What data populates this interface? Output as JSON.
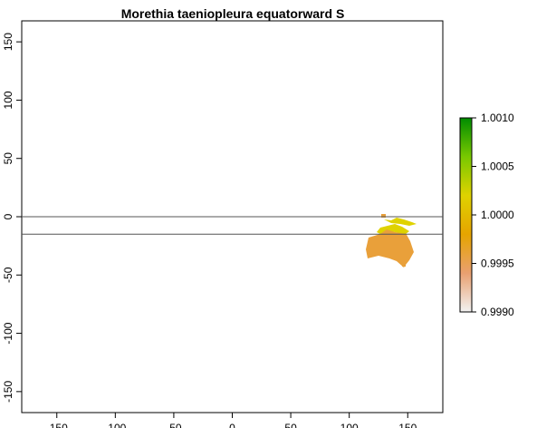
{
  "title": "Morethia taeniopleura equatorward S",
  "x_axis": {
    "ticks": [
      -150,
      -100,
      -50,
      0,
      50,
      100,
      150
    ],
    "range": [
      -180,
      180
    ]
  },
  "y_axis": {
    "ticks": [
      150,
      100,
      50,
      0,
      -50,
      -100,
      -150
    ],
    "range": [
      -168,
      168
    ]
  },
  "reference_lines": [
    {
      "name": "equator",
      "lat": 0
    },
    {
      "name": "range-limit",
      "lat": -15
    }
  ],
  "legend": {
    "ticks": [
      "1.0010",
      "1.0005",
      "1.0000",
      "0.9995",
      "0.9990"
    ],
    "range": [
      0.999,
      1.001
    ],
    "colors": [
      "#f2f2f2",
      "#e9a070",
      "#e6a400",
      "#dfd200",
      "#79c800",
      "#008c00"
    ]
  },
  "colors": {
    "australia": "#e9a03a",
    "northern-band": "#dfd200",
    "frame": "#000000",
    "reference-line": "#555555"
  }
}
